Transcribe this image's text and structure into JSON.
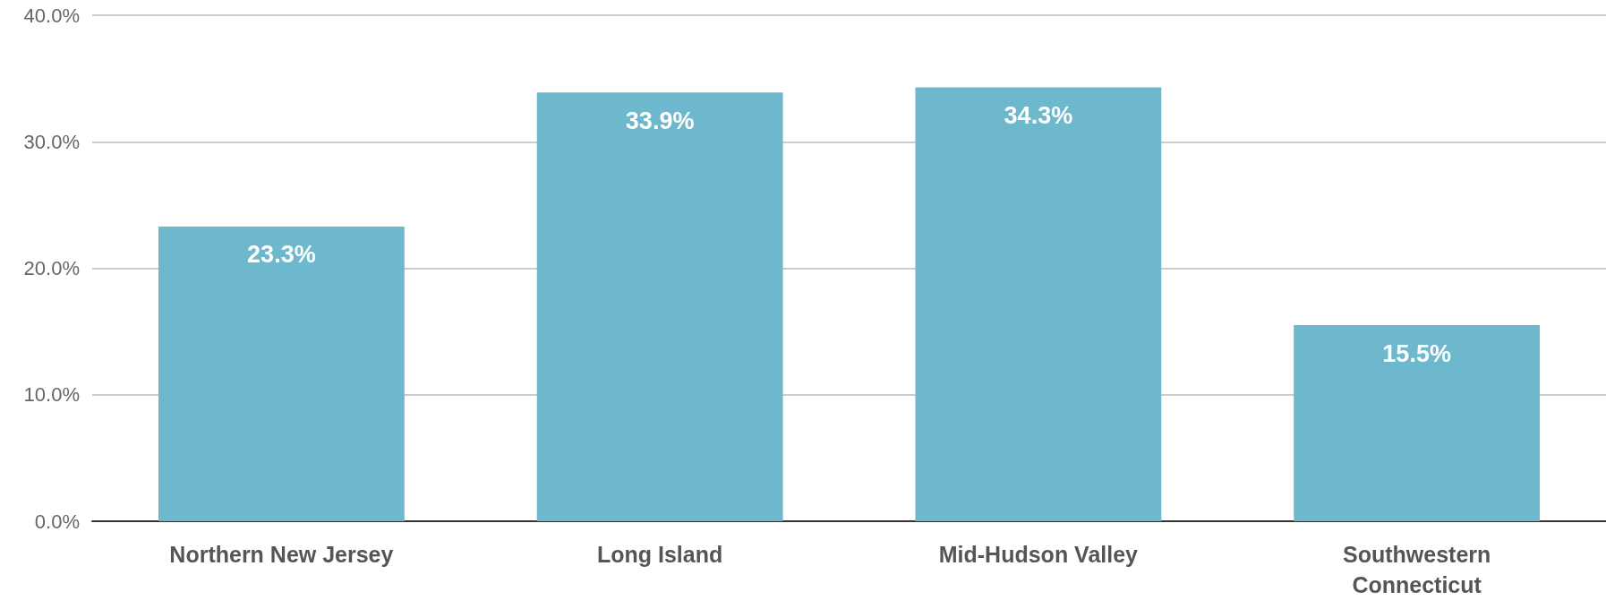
{
  "chart_data": {
    "type": "bar",
    "categories": [
      "Northern New Jersey",
      "Long Island",
      "Mid-Hudson Valley",
      "Southwestern\nConnecticut"
    ],
    "values": [
      23.3,
      33.9,
      34.3,
      15.5
    ],
    "value_labels": [
      "23.3%",
      "33.9%",
      "34.3%",
      "15.5%"
    ],
    "color": "#6db8cc",
    "ylim": [
      0,
      40
    ],
    "yticks": [
      {
        "value": 0,
        "label": "0.0%"
      },
      {
        "value": 10,
        "label": "10.0%"
      },
      {
        "value": 20,
        "label": "20.0%"
      },
      {
        "value": 30,
        "label": "30.0%"
      },
      {
        "value": 40,
        "label": "40.0%"
      }
    ],
    "grid": "y"
  }
}
